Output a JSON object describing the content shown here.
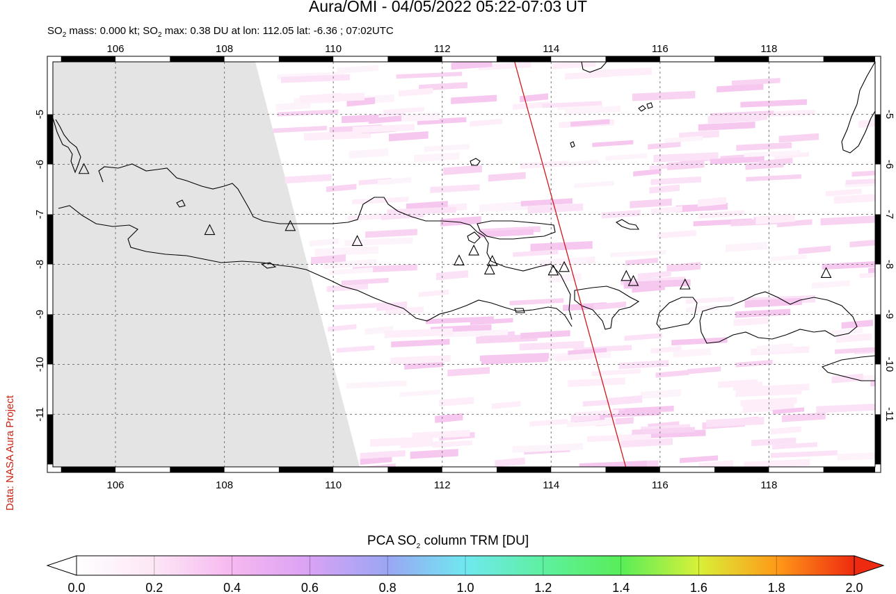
{
  "title": "Aura/OMI - 04/05/2022 05:22-07:03 UT",
  "subtitle": {
    "part1": "SO",
    "sub1": "2",
    "part2": " mass: 0.000 kt; SO",
    "sub2": "2",
    "part3": " max: 0.38 DU at lon: 112.05 lat: -6.36 ; 07:02UTC"
  },
  "credit": "Data: NASA Aura Project",
  "colorbar": {
    "title_part1": "PCA SO",
    "title_sub": "2",
    "title_part2": " column TRM [DU]",
    "ticks": [
      "0.0",
      "0.2",
      "0.4",
      "0.6",
      "0.8",
      "1.0",
      "1.2",
      "1.4",
      "1.6",
      "1.8",
      "2.0"
    ],
    "colors": [
      "#ffffff",
      "#fde6f6",
      "#f6b8f0",
      "#d9a2f4",
      "#9aa6f4",
      "#6fe8f0",
      "#5ef0a0",
      "#58ee58",
      "#d8f038",
      "#ff9a18",
      "#ee2a10"
    ]
  },
  "map": {
    "lon_ticks": [
      "106",
      "108",
      "110",
      "112",
      "114",
      "116",
      "118"
    ],
    "lon_values": [
      106,
      108,
      110,
      112,
      114,
      116,
      118
    ],
    "lat_ticks": [
      "-5",
      "-6",
      "-7",
      "-8",
      "-9",
      "-10",
      "-11"
    ],
    "lat_values": [
      -5,
      -6,
      -7,
      -8,
      -9,
      -10,
      -11
    ],
    "lon_range": [
      104.85,
      119.95
    ],
    "lat_range": [
      -12.05,
      -3.95
    ],
    "grid": true,
    "colors": {
      "coast": "#000000",
      "orbit_track": "#d01818",
      "no_data": "#e4e4e4",
      "grid": "#777777"
    },
    "volcanoes": [
      [
        105.42,
        -6.1
      ],
      [
        107.73,
        -7.32
      ],
      [
        109.21,
        -7.24
      ],
      [
        110.44,
        -7.54
      ],
      [
        112.31,
        -7.93
      ],
      [
        112.58,
        -7.73
      ],
      [
        112.92,
        -7.94
      ],
      [
        112.87,
        -8.11
      ],
      [
        114.04,
        -8.13
      ],
      [
        114.24,
        -8.06
      ],
      [
        115.38,
        -8.24
      ],
      [
        115.51,
        -8.34
      ],
      [
        116.46,
        -8.41
      ],
      [
        119.05,
        -8.18
      ]
    ],
    "orbit_track": [
      [
        113.33,
        -3.95
      ],
      [
        115.37,
        -12.05
      ]
    ],
    "max_so2_du": 0.38
  }
}
